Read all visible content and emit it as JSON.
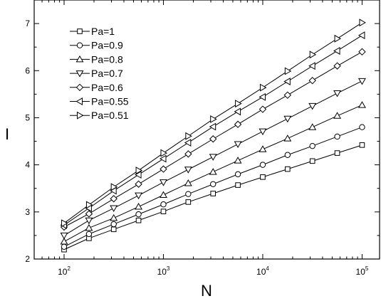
{
  "chart_data": {
    "type": "line",
    "title": "",
    "xlabel": "N",
    "ylabel": "I",
    "xscale": "log",
    "xlim": [
      50,
      150000
    ],
    "ylim": [
      2,
      7.5
    ],
    "x_ticks": [
      {
        "base": "10",
        "exp": "2",
        "value": 100
      },
      {
        "base": "10",
        "exp": "3",
        "value": 1000
      },
      {
        "base": "10",
        "exp": "4",
        "value": 10000
      },
      {
        "base": "10",
        "exp": "5",
        "value": 100000
      }
    ],
    "y_ticks": [
      "2",
      "3",
      "4",
      "5",
      "6",
      "7"
    ],
    "x": [
      100,
      178,
      316,
      562,
      1000,
      1778,
      3162,
      5623,
      10000,
      17783,
      31623,
      56234,
      100000
    ],
    "grid": false,
    "legend_position": "top-left",
    "series": [
      {
        "name": "Pa=1",
        "marker": "square",
        "values": [
          2.2,
          2.44,
          2.63,
          2.82,
          3.01,
          3.21,
          3.39,
          3.57,
          3.74,
          3.91,
          4.08,
          4.25,
          4.42
        ]
      },
      {
        "name": "Pa=0.9",
        "marker": "circle",
        "values": [
          2.26,
          2.53,
          2.74,
          2.95,
          3.16,
          3.38,
          3.59,
          3.8,
          4.0,
          4.21,
          4.4,
          4.6,
          4.8
        ]
      },
      {
        "name": "Pa=0.8",
        "marker": "triangle-up",
        "values": [
          2.37,
          2.66,
          2.87,
          3.11,
          3.36,
          3.61,
          3.85,
          4.09,
          4.33,
          4.56,
          4.8,
          5.04,
          5.27
        ]
      },
      {
        "name": "Pa=0.7",
        "marker": "triangle-down",
        "values": [
          2.5,
          2.82,
          3.08,
          3.35,
          3.63,
          3.9,
          4.17,
          4.44,
          4.71,
          4.98,
          5.25,
          5.52,
          5.78
        ]
      },
      {
        "name": "Pa=0.6",
        "marker": "diamond",
        "values": [
          2.68,
          2.96,
          3.28,
          3.59,
          3.91,
          4.23,
          4.55,
          4.86,
          5.18,
          5.48,
          5.79,
          6.1,
          6.4
        ]
      },
      {
        "name": "Pa=0.55",
        "marker": "triangle-left",
        "values": [
          2.72,
          3.08,
          3.45,
          3.79,
          4.13,
          4.47,
          4.81,
          5.13,
          5.44,
          5.77,
          6.1,
          6.42,
          6.75
        ]
      },
      {
        "name": "Pa=0.51",
        "marker": "triangle-right",
        "values": [
          2.76,
          3.15,
          3.53,
          3.88,
          4.25,
          4.61,
          4.97,
          5.3,
          5.64,
          5.99,
          6.34,
          6.68,
          7.02
        ]
      }
    ]
  }
}
